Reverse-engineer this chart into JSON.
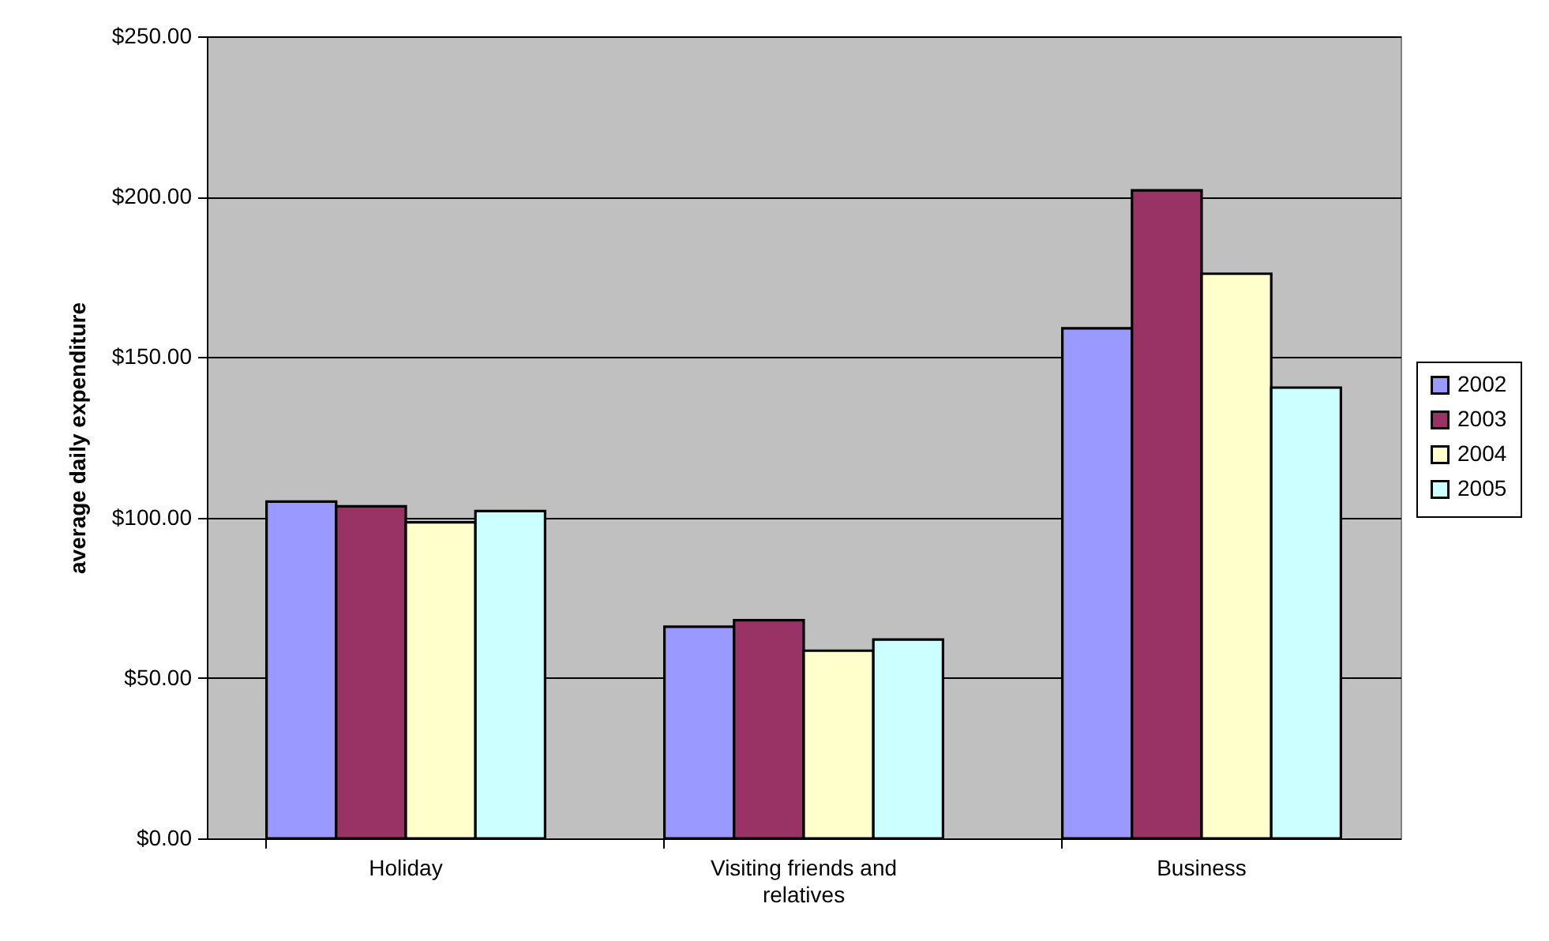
{
  "chart_data": {
    "type": "bar",
    "ylabel": "average daily expenditure",
    "categories": [
      "Holiday",
      "Visiting friends and relatives",
      "Business"
    ],
    "series": [
      {
        "name": "2002",
        "color": "#9999ff",
        "values": [
          105,
          66,
          159
        ]
      },
      {
        "name": "2003",
        "color": "#993366",
        "values": [
          103.5,
          68,
          202
        ]
      },
      {
        "name": "2004",
        "color": "#ffffcc",
        "values": [
          98.5,
          58.5,
          176
        ]
      },
      {
        "name": "2005",
        "color": "#ccffff",
        "values": [
          102,
          62,
          140.5
        ]
      }
    ],
    "ylim": [
      0,
      250
    ],
    "yticks": [
      {
        "value": 0,
        "label": "$0.00"
      },
      {
        "value": 50,
        "label": "$50.00"
      },
      {
        "value": 100,
        "label": "$100.00"
      },
      {
        "value": 150,
        "label": "$150.00"
      },
      {
        "value": 200,
        "label": "$200.00"
      },
      {
        "value": 250,
        "label": "$250.00"
      }
    ],
    "grid": "y",
    "legend": "right"
  }
}
